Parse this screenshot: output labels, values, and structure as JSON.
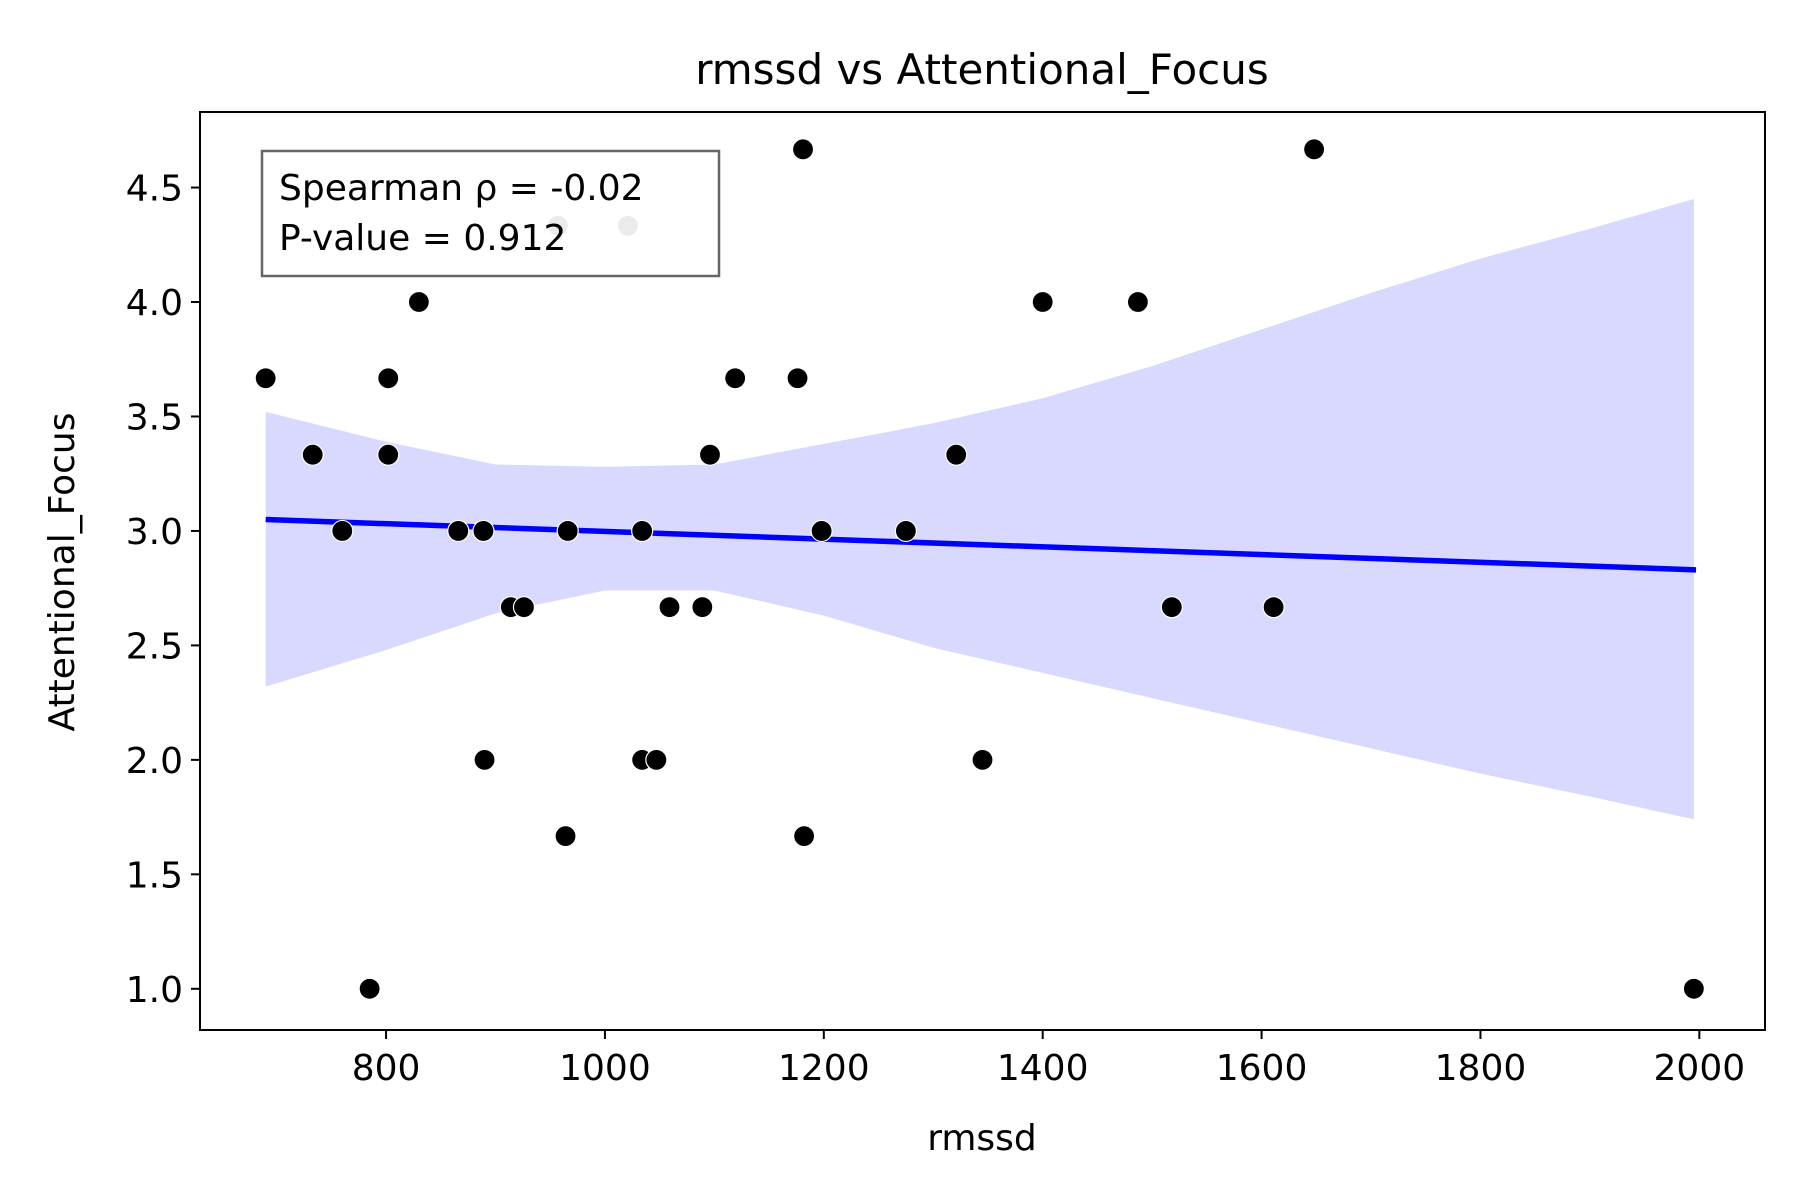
{
  "chart_data": {
    "type": "scatter",
    "title": "rmssd vs Attentional_Focus",
    "xlabel": "rmssd",
    "ylabel": "Attentional_Focus",
    "xlim": [
      630,
      2060
    ],
    "ylim": [
      0.82,
      4.83
    ],
    "xticks": [
      800,
      1000,
      1200,
      1400,
      1600,
      1800,
      2000
    ],
    "yticks": [
      1.0,
      1.5,
      2.0,
      2.5,
      3.0,
      3.5,
      4.0,
      4.5
    ],
    "grid": false,
    "points": [
      {
        "x": 690,
        "y": 3.667
      },
      {
        "x": 733,
        "y": 3.333
      },
      {
        "x": 760,
        "y": 3.0
      },
      {
        "x": 785,
        "y": 1.0
      },
      {
        "x": 802,
        "y": 3.667
      },
      {
        "x": 802,
        "y": 3.333
      },
      {
        "x": 830,
        "y": 4.0
      },
      {
        "x": 866,
        "y": 3.0
      },
      {
        "x": 889,
        "y": 3.0
      },
      {
        "x": 890,
        "y": 2.0
      },
      {
        "x": 914,
        "y": 2.667
      },
      {
        "x": 926,
        "y": 2.667
      },
      {
        "x": 957,
        "y": 4.333,
        "color": "#999999"
      },
      {
        "x": 964,
        "y": 1.667
      },
      {
        "x": 966,
        "y": 3.0
      },
      {
        "x": 1021,
        "y": 4.333,
        "color": "#999999"
      },
      {
        "x": 1034,
        "y": 3.0
      },
      {
        "x": 1034,
        "y": 2.0
      },
      {
        "x": 1047,
        "y": 2.0
      },
      {
        "x": 1059,
        "y": 2.667
      },
      {
        "x": 1089,
        "y": 2.667
      },
      {
        "x": 1096,
        "y": 3.333
      },
      {
        "x": 1119,
        "y": 3.667
      },
      {
        "x": 1176,
        "y": 3.667
      },
      {
        "x": 1181,
        "y": 4.667
      },
      {
        "x": 1182,
        "y": 1.667
      },
      {
        "x": 1198,
        "y": 3.0
      },
      {
        "x": 1275,
        "y": 3.0
      },
      {
        "x": 1321,
        "y": 3.333
      },
      {
        "x": 1345,
        "y": 2.0
      },
      {
        "x": 1400,
        "y": 4.0
      },
      {
        "x": 1487,
        "y": 4.0
      },
      {
        "x": 1518,
        "y": 2.667
      },
      {
        "x": 1611,
        "y": 2.667
      },
      {
        "x": 1648,
        "y": 4.667
      },
      {
        "x": 1995,
        "y": 1.0
      }
    ],
    "regression_line": {
      "x": [
        690,
        1997
      ],
      "y": [
        3.05,
        2.83
      ],
      "color": "#0000ff"
    },
    "confidence_band": {
      "color": "#d9d9ff",
      "x": [
        690,
        800,
        900,
        1000,
        1100,
        1200,
        1300,
        1400,
        1500,
        1600,
        1700,
        1800,
        1900,
        1995
      ],
      "upper": [
        3.52,
        3.39,
        3.29,
        3.28,
        3.29,
        3.38,
        3.47,
        3.58,
        3.72,
        3.88,
        4.04,
        4.19,
        4.32,
        4.45
      ],
      "lower": [
        2.32,
        2.48,
        2.64,
        2.74,
        2.74,
        2.63,
        2.49,
        2.38,
        2.27,
        2.16,
        2.05,
        1.94,
        1.84,
        1.74
      ]
    },
    "point_color": "#000000",
    "annotation": {
      "line1": "Spearman ρ = -0.02",
      "line2": "P-value = 0.912",
      "placement": "top-left"
    }
  }
}
